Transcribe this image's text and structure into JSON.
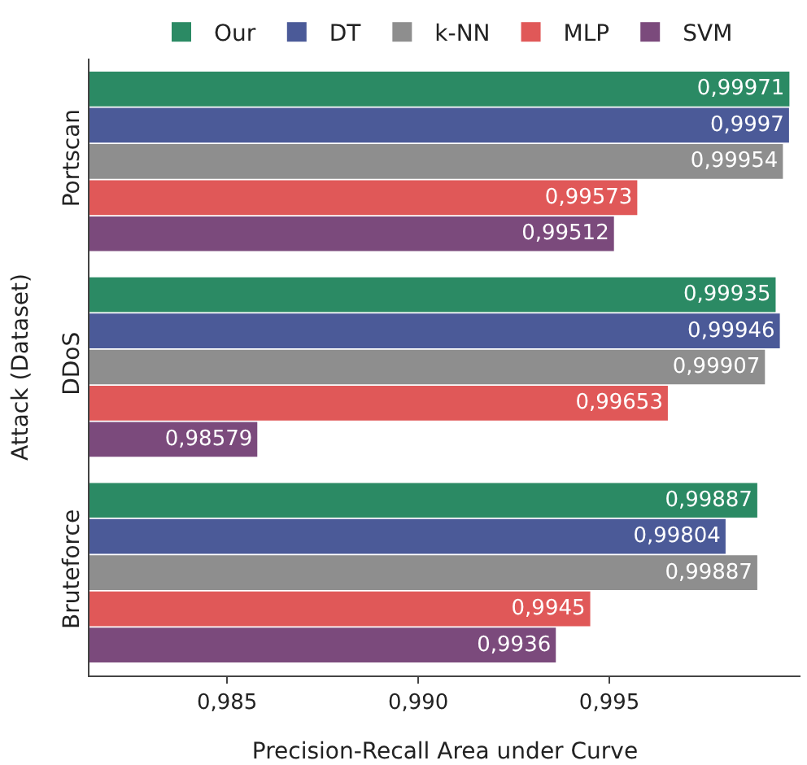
{
  "chart_data": {
    "type": "bar",
    "orientation": "horizontal",
    "xlabel": "Precision-Recall Area under Curve",
    "ylabel": "Attack (Dataset)",
    "categories": [
      "Portscan",
      "DDoS",
      "Bruteforce"
    ],
    "series": [
      {
        "name": "Our",
        "color": "#2b8a64",
        "values": [
          0.99971,
          0.99935,
          0.99887
        ],
        "value_labels": [
          "0,99971",
          "0,99935",
          "0,99887"
        ]
      },
      {
        "name": "DT",
        "color": "#4b5a98",
        "values": [
          0.9997,
          0.99946,
          0.99804
        ],
        "value_labels": [
          "0,9997",
          "0,99946",
          "0,99804"
        ]
      },
      {
        "name": "k-NN",
        "color": "#8e8e8e",
        "values": [
          0.99954,
          0.99907,
          0.99887
        ],
        "value_labels": [
          "0,99954",
          "0,99907",
          "0,99887"
        ]
      },
      {
        "name": "MLP",
        "color": "#e05858",
        "values": [
          0.99573,
          0.99653,
          0.9945
        ],
        "value_labels": [
          "0,99573",
          "0,99653",
          "0,9945"
        ]
      },
      {
        "name": "SVM",
        "color": "#7b4a7c",
        "values": [
          0.99512,
          0.98579,
          0.9936
        ],
        "value_labels": [
          "0,99512",
          "0,98579",
          "0,9936"
        ]
      }
    ],
    "xlim": [
      0.9814,
      1.0
    ],
    "xticks": [
      {
        "value": 0.985,
        "label": "0,985"
      },
      {
        "value": 0.99,
        "label": "0,990"
      },
      {
        "value": 0.995,
        "label": "0,995"
      }
    ],
    "grid": false,
    "legend": "top"
  }
}
